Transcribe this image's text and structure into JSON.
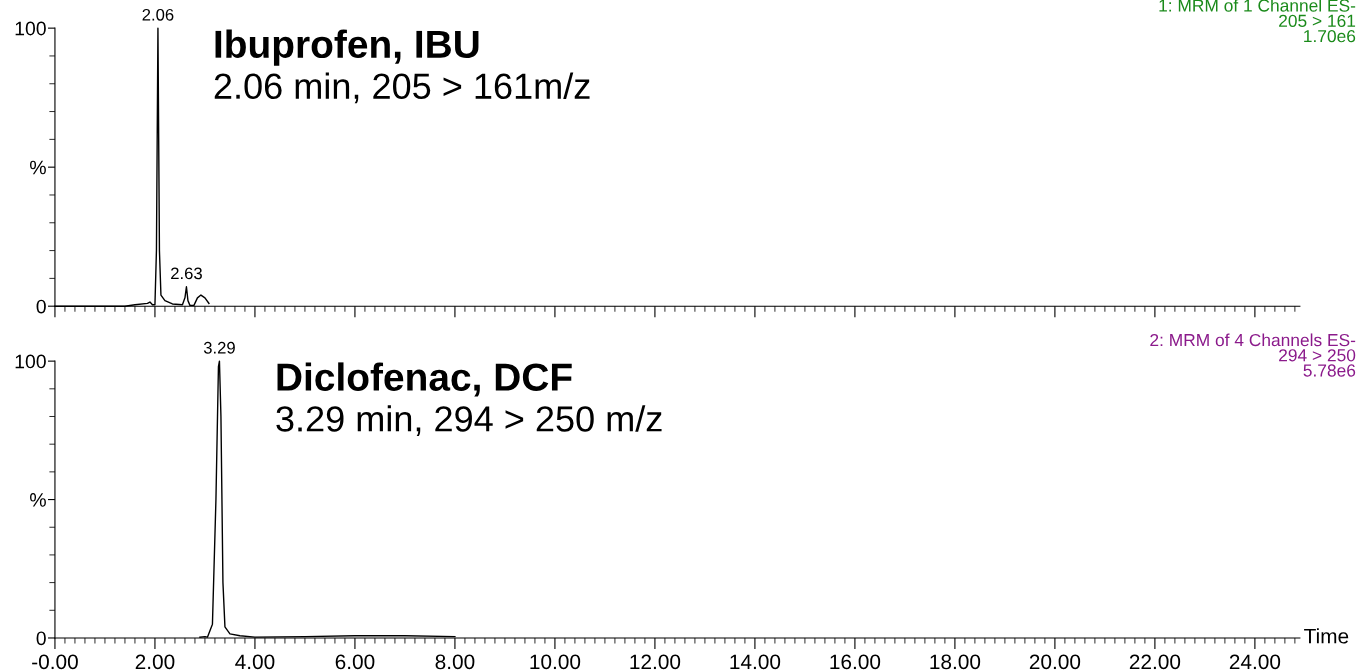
{
  "chart_data": [
    {
      "type": "line",
      "title": "Ibuprofen, IBU",
      "subtitle": "2.06 min, 205 > 161m/z",
      "x": [
        0,
        1.4,
        1.6,
        1.85,
        1.9,
        1.95,
        2.0,
        2.03,
        2.06,
        2.09,
        2.12,
        2.2,
        2.35,
        2.55,
        2.6,
        2.63,
        2.66,
        2.7,
        2.78,
        2.85,
        2.92,
        3.0,
        3.08
      ],
      "series": [
        {
          "color": "#000000",
          "values": [
            0,
            0,
            0.5,
            1,
            1.5,
            0.5,
            0.5,
            20,
            100,
            20,
            4,
            2,
            0.8,
            0.5,
            3,
            7,
            2,
            0.3,
            0.3,
            3,
            4,
            3,
            1
          ]
        }
      ],
      "annotations": [
        {
          "text": "2.06",
          "x": 2.06,
          "y": 100
        },
        {
          "text": "2.63",
          "x": 2.63,
          "y": 7
        },
        "1: MRM of 1 Channel ES-",
        "205 > 161",
        "1.70e6"
      ],
      "xlim": [
        0,
        24.9
      ],
      "ylim": [
        0,
        100
      ],
      "xticks": [
        {
          "value": 0,
          "label": null
        },
        {
          "value": 2,
          "label": null
        },
        {
          "value": 4,
          "label": null
        },
        {
          "value": 6,
          "label": null
        },
        {
          "value": 8,
          "label": null
        },
        {
          "value": 10,
          "label": null
        },
        {
          "value": 12,
          "label": null
        },
        {
          "value": 14,
          "label": null
        },
        {
          "value": 16,
          "label": null
        },
        {
          "value": 18,
          "label": null
        },
        {
          "value": 20,
          "label": null
        },
        {
          "value": 22,
          "label": null
        },
        {
          "value": 24,
          "label": null
        }
      ],
      "yticks": [
        0,
        {
          "value": 50,
          "label": "%"
        },
        100
      ],
      "tick_labels": "y",
      "grid": false,
      "legend": false
    },
    {
      "type": "line",
      "title": "Diclofenac, DCF",
      "subtitle": "3.29 min, 294 > 250 m/z",
      "xlabel": "Time",
      "x": [
        2.9,
        3.0,
        3.05,
        3.15,
        3.22,
        3.27,
        3.29,
        3.32,
        3.36,
        3.4,
        3.5,
        3.7,
        4.0,
        5.0,
        6.0,
        7.0,
        8.0
      ],
      "series": [
        {
          "color": "#000000",
          "values": [
            0.3,
            0.5,
            0.3,
            5,
            50,
            98,
            100,
            80,
            20,
            4,
            1.5,
            0.8,
            0.3,
            0.5,
            0.8,
            0.8,
            0.5
          ]
        }
      ],
      "annotations": [
        {
          "text": "3.29",
          "x": 3.29,
          "y": 100
        },
        "2: MRM of 4 Channels ES-",
        "294 > 250",
        "5.78e6"
      ],
      "xlim": [
        0,
        24.9
      ],
      "ylim": [
        0,
        100
      ],
      "xticks": [
        {
          "value": 0,
          "label": "-0.00"
        },
        {
          "value": 2,
          "label": "2.00"
        },
        {
          "value": 4,
          "label": "4.00"
        },
        {
          "value": 6,
          "label": "6.00"
        },
        {
          "value": 8,
          "label": "8.00"
        },
        {
          "value": 10,
          "label": "10.00"
        },
        {
          "value": 12,
          "label": "12.00"
        },
        {
          "value": 14,
          "label": "14.00"
        },
        {
          "value": 16,
          "label": "16.00"
        },
        {
          "value": 18,
          "label": "18.00"
        },
        {
          "value": 20,
          "label": "20.00"
        },
        {
          "value": 22,
          "label": "22.00"
        },
        {
          "value": 24,
          "label": "24.00"
        }
      ],
      "yticks": [
        0,
        {
          "value": 50,
          "label": "%"
        },
        100
      ],
      "grid": false,
      "legend": false
    }
  ]
}
